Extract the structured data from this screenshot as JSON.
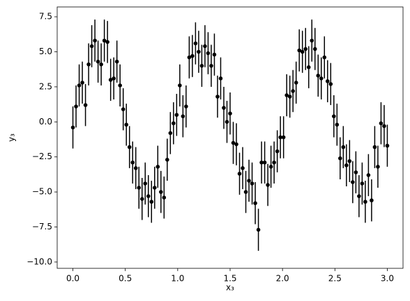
{
  "chart_data": {
    "type": "errorbar",
    "xlabel": "x₃",
    "ylabel": "y₃",
    "x": [
      0.0,
      0.03,
      0.06,
      0.09,
      0.12,
      0.15,
      0.18,
      0.21,
      0.24,
      0.27,
      0.3,
      0.33,
      0.36,
      0.39,
      0.42,
      0.45,
      0.48,
      0.51,
      0.54,
      0.57,
      0.6,
      0.63,
      0.66,
      0.69,
      0.72,
      0.75,
      0.78,
      0.81,
      0.84,
      0.87,
      0.9,
      0.93,
      0.96,
      0.99,
      1.02,
      1.05,
      1.08,
      1.11,
      1.14,
      1.17,
      1.2,
      1.23,
      1.26,
      1.29,
      1.32,
      1.35,
      1.38,
      1.41,
      1.44,
      1.47,
      1.5,
      1.53,
      1.56,
      1.59,
      1.62,
      1.65,
      1.68,
      1.71,
      1.74,
      1.77,
      1.8,
      1.83,
      1.86,
      1.89,
      1.92,
      1.95,
      1.98,
      2.01,
      2.04,
      2.07,
      2.1,
      2.13,
      2.16,
      2.19,
      2.22,
      2.25,
      2.28,
      2.31,
      2.34,
      2.37,
      2.4,
      2.43,
      2.46,
      2.49,
      2.52,
      2.55,
      2.58,
      2.61,
      2.64,
      2.67,
      2.7,
      2.73,
      2.76,
      2.79,
      2.82,
      2.85,
      2.88,
      2.91,
      2.94,
      2.97,
      3.0
    ],
    "y": [
      -0.4,
      1.1,
      2.6,
      2.8,
      1.2,
      4.1,
      5.4,
      5.8,
      4.3,
      4.1,
      5.8,
      5.7,
      3.0,
      3.1,
      4.3,
      2.6,
      0.9,
      -0.2,
      -1.8,
      -2.9,
      -3.3,
      -4.7,
      -5.5,
      -4.4,
      -5.3,
      -5.7,
      -4.7,
      -3.2,
      -5.0,
      -5.4,
      -2.7,
      -0.8,
      -0.1,
      0.5,
      2.6,
      0.4,
      1.1,
      4.6,
      4.7,
      5.6,
      5.0,
      4.0,
      5.4,
      4.9,
      4.0,
      4.8,
      1.8,
      3.1,
      1.0,
      0.0,
      0.6,
      -1.5,
      -1.6,
      -3.7,
      -3.3,
      -5.0,
      -4.2,
      -4.4,
      -5.8,
      -7.7,
      -2.9,
      -2.9,
      -4.5,
      -3.2,
      -2.9,
      -2.1,
      -1.1,
      -1.1,
      1.9,
      1.8,
      2.2,
      2.8,
      5.1,
      5.0,
      5.2,
      3.9,
      5.8,
      5.2,
      3.3,
      3.1,
      4.6,
      2.9,
      2.7,
      0.4,
      -0.2,
      -2.6,
      -1.8,
      -3.1,
      -2.8,
      -4.3,
      -3.6,
      -5.3,
      -4.4,
      -5.7,
      -3.8,
      -5.6,
      -1.8,
      -3.2,
      -0.1,
      -0.3,
      -1.7
    ],
    "yerr": 1.5,
    "color": "#000000",
    "xlim": [
      -0.15,
      3.15
    ],
    "ylim": [
      -10.45,
      8.2
    ],
    "xticks": [
      {
        "value": 0,
        "label": "0.0"
      },
      {
        "value": 0.5,
        "label": "0.5"
      },
      {
        "value": 1,
        "label": "1.0"
      },
      {
        "value": 1.5,
        "label": "1.5"
      },
      {
        "value": 2,
        "label": "2.0"
      },
      {
        "value": 2.5,
        "label": "2.5"
      },
      {
        "value": 3,
        "label": "3.0"
      }
    ],
    "yticks": [
      {
        "value": -10,
        "label": "−10.0"
      },
      {
        "value": -7.5,
        "label": "−7.5"
      },
      {
        "value": -5,
        "label": "−5.0"
      },
      {
        "value": -2.5,
        "label": "−2.5"
      },
      {
        "value": 0,
        "label": "0.0"
      },
      {
        "value": 2.5,
        "label": "2.5"
      },
      {
        "value": 5,
        "label": "5.0"
      },
      {
        "value": 7.5,
        "label": "7.5"
      }
    ]
  }
}
